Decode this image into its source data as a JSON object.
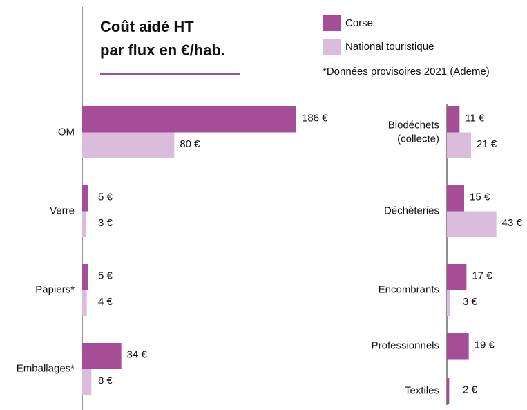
{
  "chart_data": {
    "type": "bar",
    "orientation": "horizontal",
    "title": "Coût aidé HT\npar flux en €/hab.",
    "note": "*Données provisoires 2021 (Ademe)",
    "categories": [
      "OM",
      "Verre",
      "Papiers*",
      "Emballages*",
      "Biodéchets\n(collecte)",
      "Déchèteries",
      "Encombrants",
      "Professionnels",
      "Textiles"
    ],
    "series": [
      {
        "name": "Corse",
        "color": "#a64d98",
        "values": [
          186,
          5,
          5,
          34,
          11,
          15,
          17,
          19,
          2
        ],
        "value_labels": [
          "186 €",
          "5 €",
          "5 €",
          "34 €",
          "11 €",
          "15 €",
          "17 €",
          "19 €",
          "2 €"
        ]
      },
      {
        "name": "National touristique",
        "color": "#dcbcdc",
        "values": [
          80,
          3,
          4,
          8,
          21,
          43,
          3,
          null,
          null
        ],
        "value_labels": [
          "80 €",
          "3 €",
          "4 €",
          "8 €",
          "21 €",
          "43 €",
          "3 €",
          null,
          null
        ]
      }
    ]
  }
}
